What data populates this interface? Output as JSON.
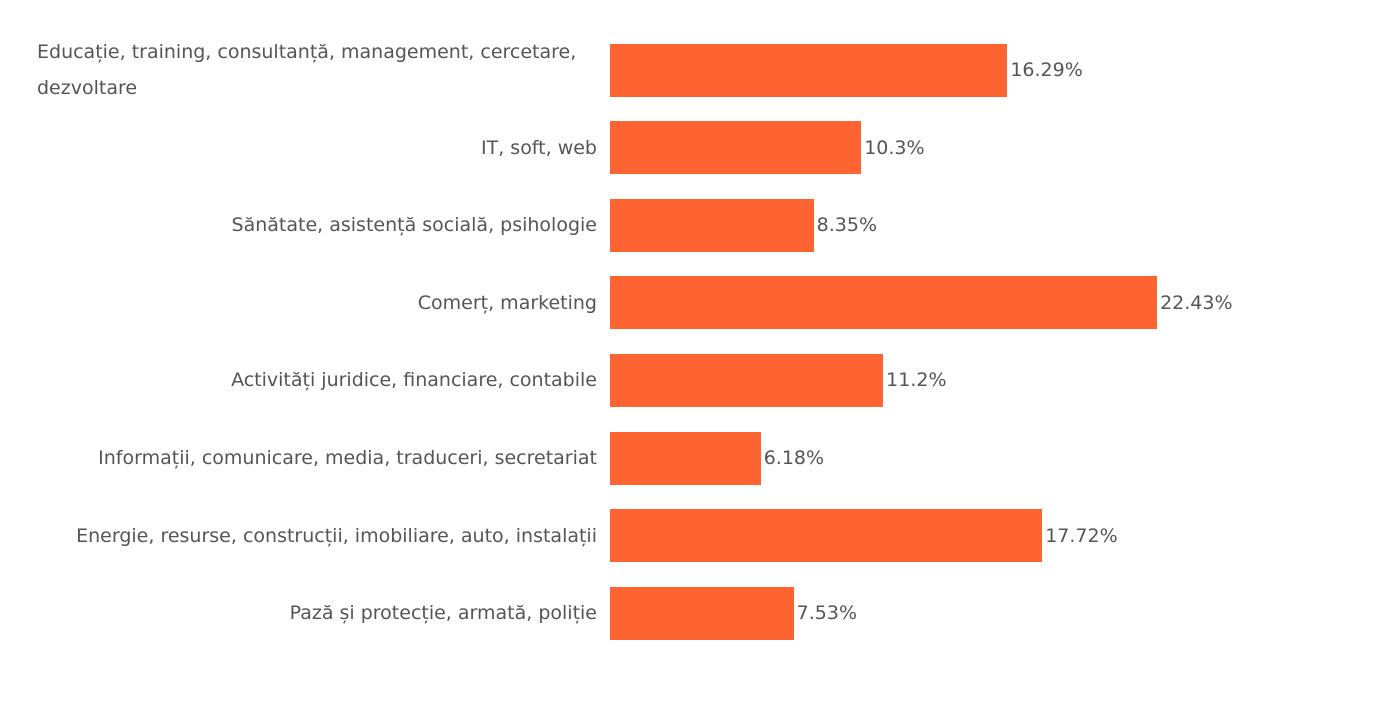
{
  "chart_data": {
    "type": "bar",
    "orientation": "horizontal",
    "color": "#fe6432",
    "categories": [
      "Educație, training, consultanță, management, cercetare, dezvoltare",
      "IT, soft, web",
      "Sănătate, asistență socială, psihologie",
      "Comerț, marketing",
      "Activități juridice, financiare, contabile",
      "Informații, comunicare, media, traduceri, secretariat",
      "Energie, resurse, construcții, imobiliare, auto, instalații",
      "Pază și protecție, armată, poliție"
    ],
    "values": [
      16.29,
      10.3,
      8.35,
      22.43,
      11.2,
      6.18,
      17.72,
      7.53
    ],
    "value_labels": [
      "16.29%",
      "10.3%",
      "8.35%",
      "22.43%",
      "11.2%",
      "6.18%",
      "17.72%",
      "7.53%"
    ]
  }
}
